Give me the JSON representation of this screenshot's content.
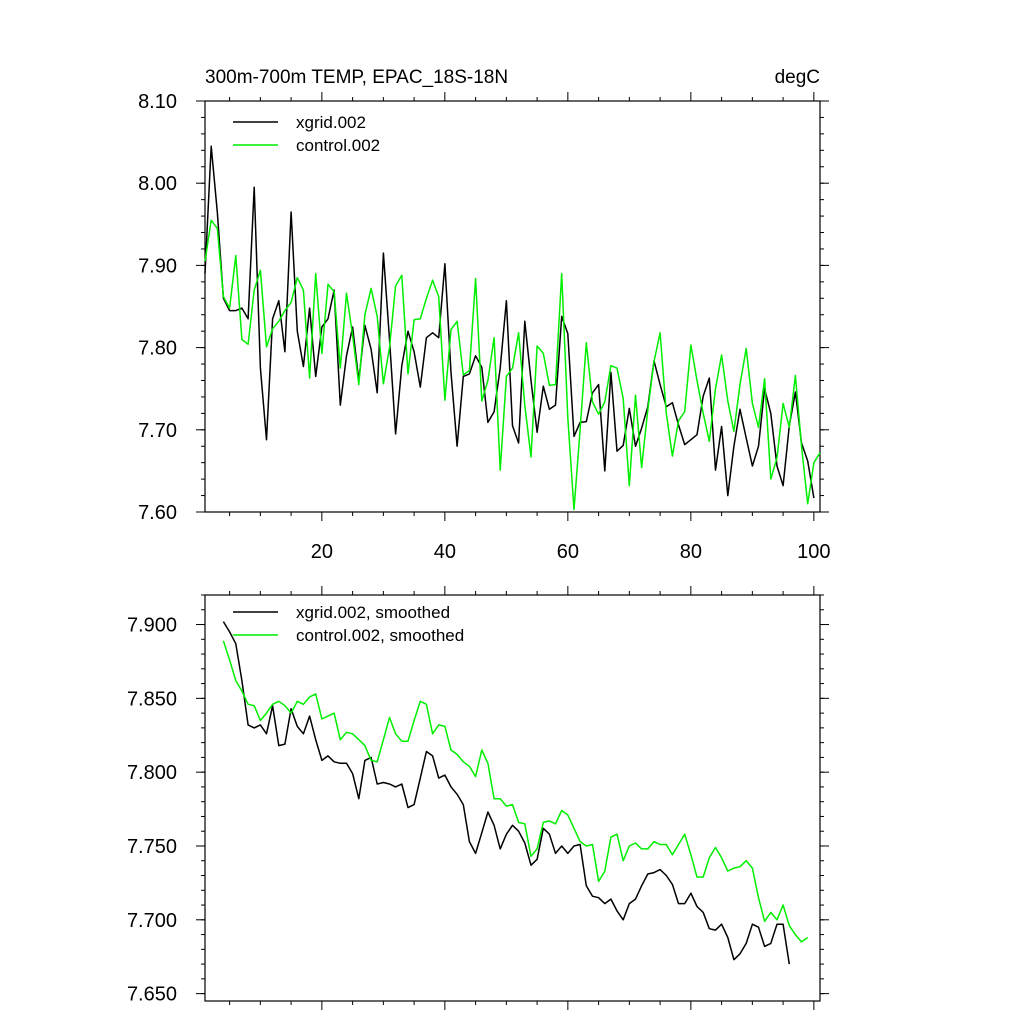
{
  "colors": {
    "xgrid": "#000000",
    "control": "#00ee00"
  },
  "chart_data": [
    {
      "type": "line",
      "title": "300m-700m TEMP, EPAC_18S-18N",
      "units": "degC",
      "xlabel": "",
      "ylabel": "",
      "xlim": [
        1,
        101
      ],
      "ylim": [
        7.6,
        8.1
      ],
      "yticks": [
        "7.60",
        "7.70",
        "7.80",
        "7.90",
        "8.00",
        "8.10"
      ],
      "xticks": [
        "20",
        "40",
        "60",
        "80",
        "100"
      ],
      "grid": false,
      "legend_position": "top-left",
      "series": [
        {
          "name": "xgrid.002",
          "x_start": 1,
          "values": [
            7.89,
            8.045,
            7.965,
            7.86,
            7.845,
            7.845,
            7.848,
            7.835,
            7.995,
            7.775,
            7.688,
            7.835,
            7.857,
            7.795,
            7.965,
            7.82,
            7.777,
            7.848,
            7.765,
            7.825,
            7.835,
            7.87,
            7.73,
            7.79,
            7.825,
            7.76,
            7.827,
            7.798,
            7.745,
            7.915,
            7.81,
            7.695,
            7.778,
            7.82,
            7.795,
            7.752,
            7.812,
            7.818,
            7.812,
            7.902,
            7.77,
            7.68,
            7.765,
            7.768,
            7.79,
            7.776,
            7.709,
            7.722,
            7.775,
            7.857,
            7.705,
            7.684,
            7.832,
            7.76,
            7.697,
            7.753,
            7.725,
            7.73,
            7.838,
            7.817,
            7.692,
            7.709,
            7.71,
            7.745,
            7.755,
            7.65,
            7.77,
            7.674,
            7.681,
            7.726,
            7.68,
            7.702,
            7.728,
            7.784,
            7.755,
            7.728,
            7.733,
            7.706,
            7.682,
            7.688,
            7.694,
            7.741,
            7.763,
            7.651,
            7.704,
            7.62,
            7.68,
            7.725,
            7.69,
            7.656,
            7.68,
            7.75,
            7.72,
            7.656,
            7.632,
            7.705,
            7.746,
            7.684,
            7.662,
            7.617
          ]
        },
        {
          "name": "control.002",
          "x_start": 1,
          "values": [
            7.905,
            7.955,
            7.945,
            7.862,
            7.848,
            7.912,
            7.81,
            7.804,
            7.87,
            7.894,
            7.801,
            7.823,
            7.832,
            7.845,
            7.855,
            7.885,
            7.87,
            7.763,
            7.89,
            7.793,
            7.877,
            7.868,
            7.775,
            7.866,
            7.815,
            7.755,
            7.84,
            7.872,
            7.838,
            7.756,
            7.8,
            7.875,
            7.888,
            7.768,
            7.834,
            7.835,
            7.86,
            7.882,
            7.862,
            7.736,
            7.822,
            7.832,
            7.767,
            7.772,
            7.884,
            7.735,
            7.76,
            7.812,
            7.651,
            7.765,
            7.775,
            7.818,
            7.73,
            7.667,
            7.802,
            7.793,
            7.754,
            7.755,
            7.89,
            7.715,
            7.603,
            7.7,
            7.806,
            7.734,
            7.719,
            7.734,
            7.778,
            7.775,
            7.738,
            7.632,
            7.742,
            7.654,
            7.724,
            7.783,
            7.818,
            7.72,
            7.668,
            7.711,
            7.722,
            7.803,
            7.76,
            7.72,
            7.686,
            7.75,
            7.791,
            7.735,
            7.698,
            7.755,
            7.799,
            7.732,
            7.703,
            7.762,
            7.64,
            7.666,
            7.732,
            7.703,
            7.766,
            7.68,
            7.61,
            7.66,
            7.672
          ]
        }
      ]
    },
    {
      "type": "line",
      "title": "",
      "xlabel": "",
      "ylabel": "",
      "xlim": [
        1,
        101
      ],
      "ylim": [
        7.645,
        7.92
      ],
      "yticks": [
        "7.650",
        "7.700",
        "7.750",
        "7.800",
        "7.850",
        "7.900"
      ],
      "grid": false,
      "legend_position": "top-left",
      "series": [
        {
          "name": "xgrid.002, smoothed",
          "x_start": 4,
          "values": [
            7.902,
            7.895,
            7.887,
            7.862,
            7.832,
            7.83,
            7.832,
            7.826,
            7.845,
            7.818,
            7.819,
            7.843,
            7.831,
            7.826,
            7.838,
            7.822,
            7.808,
            7.811,
            7.807,
            7.806,
            7.806,
            7.799,
            7.782,
            7.808,
            7.81,
            7.792,
            7.793,
            7.792,
            7.79,
            7.792,
            7.776,
            7.778,
            7.796,
            7.814,
            7.811,
            7.796,
            7.798,
            7.79,
            7.785,
            7.778,
            7.753,
            7.745,
            7.759,
            7.773,
            7.764,
            7.748,
            7.758,
            7.764,
            7.76,
            7.752,
            7.737,
            7.741,
            7.762,
            7.758,
            7.745,
            7.75,
            7.745,
            7.75,
            7.751,
            7.723,
            7.716,
            7.715,
            7.711,
            7.714,
            7.706,
            7.7,
            7.711,
            7.714,
            7.723,
            7.731,
            7.732,
            7.734,
            7.73,
            7.724,
            7.711,
            7.711,
            7.718,
            7.709,
            7.705,
            7.694,
            7.693,
            7.697,
            7.688,
            7.673,
            7.677,
            7.684,
            7.697,
            7.695,
            7.682,
            7.684,
            7.697,
            7.697,
            7.67
          ]
        },
        {
          "name": "control.002, smoothed",
          "x_start": 4,
          "values": [
            7.889,
            7.876,
            7.862,
            7.855,
            7.846,
            7.845,
            7.835,
            7.84,
            7.846,
            7.848,
            7.845,
            7.84,
            7.848,
            7.846,
            7.851,
            7.853,
            7.836,
            7.838,
            7.84,
            7.822,
            7.827,
            7.826,
            7.822,
            7.818,
            7.808,
            7.807,
            7.822,
            7.837,
            7.826,
            7.821,
            7.821,
            7.835,
            7.848,
            7.846,
            7.826,
            7.832,
            7.831,
            7.815,
            7.812,
            7.807,
            7.804,
            7.797,
            7.815,
            7.806,
            7.782,
            7.782,
            7.777,
            7.778,
            7.766,
            7.765,
            7.743,
            7.748,
            7.766,
            7.767,
            7.765,
            7.774,
            7.771,
            7.762,
            7.753,
            7.75,
            7.751,
            7.726,
            7.733,
            7.756,
            7.758,
            7.74,
            7.75,
            7.752,
            7.748,
            7.748,
            7.753,
            7.751,
            7.751,
            7.744,
            7.751,
            7.758,
            7.744,
            7.729,
            7.729,
            7.742,
            7.749,
            7.742,
            7.733,
            7.735,
            7.736,
            7.74,
            7.735,
            7.715,
            7.699,
            7.705,
            7.7,
            7.71,
            7.696,
            7.69,
            7.685,
            7.688
          ]
        }
      ]
    }
  ]
}
